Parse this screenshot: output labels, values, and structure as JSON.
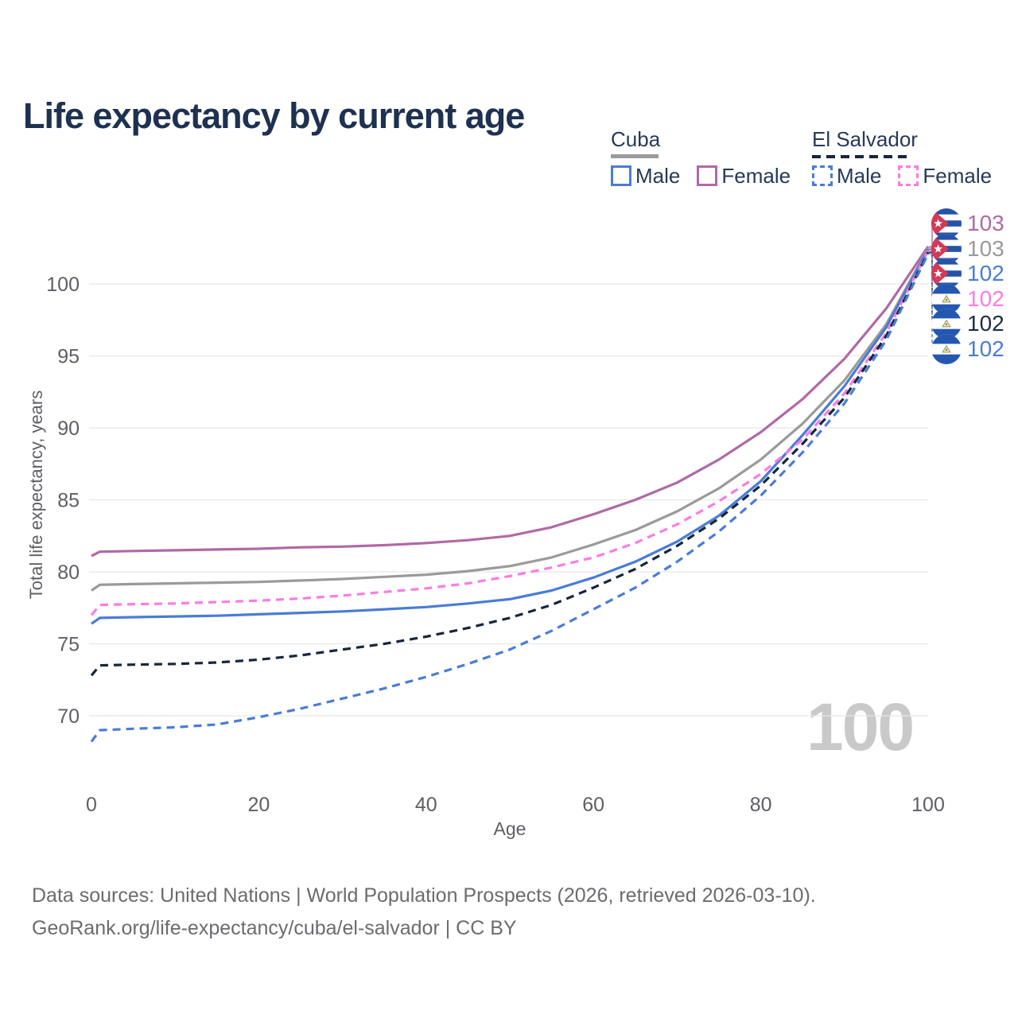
{
  "title": "Life expectancy by current age",
  "watermark": "100",
  "colors": {
    "grid": "#e8e8e8",
    "tick_text": "#5e5e66",
    "title_text": "#1e3150",
    "legend_text": "#253a57",
    "footer_text": "#6b6b70",
    "watermark_text": "#c9c9c9",
    "male_blue": "#4a7cd6",
    "cuba_female_purple": "#b069a6",
    "cuba_total_gray": "#9a9a9a",
    "es_female_pink": "#fa7ce4",
    "es_total_navy": "#16263c"
  },
  "legend": {
    "groups": [
      {
        "label": "Cuba",
        "line_style": "solid",
        "line_color": "#9a9a9a",
        "items": [
          {
            "label": "Male",
            "color": "#4a7cd6",
            "dashed": false
          },
          {
            "label": "Female",
            "color": "#b069a6",
            "dashed": false
          }
        ]
      },
      {
        "label": "El Salvador",
        "line_style": "dashed",
        "line_color": "#16263c",
        "items": [
          {
            "label": "Male",
            "color": "#4a7cd6",
            "dashed": true
          },
          {
            "label": "Female",
            "color": "#fa7ce4",
            "dashed": true
          }
        ]
      }
    ]
  },
  "chart_data": {
    "type": "line",
    "title": "Life expectancy by current age",
    "xlabel": "Age",
    "ylabel": "Total life expectancy, years",
    "xlim": [
      0,
      100
    ],
    "ylim": [
      66.5,
      103.5
    ],
    "x_ticks": [
      0,
      20,
      40,
      60,
      80,
      100
    ],
    "y_ticks": [
      70,
      75,
      80,
      85,
      90,
      95,
      100
    ],
    "grid": "horizontal",
    "legend_position": "top-right",
    "x": [
      0,
      1,
      5,
      10,
      15,
      20,
      25,
      30,
      35,
      40,
      45,
      50,
      55,
      60,
      65,
      70,
      75,
      80,
      85,
      90,
      95,
      100
    ],
    "series": [
      {
        "id": "cuba-female",
        "name": "Cuba Female",
        "country": "Cuba",
        "sex": "Female",
        "style": "solid",
        "color": "#b069a6",
        "values": [
          81.1,
          81.4,
          81.45,
          81.5,
          81.55,
          81.6,
          81.7,
          81.75,
          81.85,
          82.0,
          82.2,
          82.5,
          83.1,
          84.0,
          85.0,
          86.2,
          87.8,
          89.7,
          92.0,
          94.8,
          98.3,
          102.6
        ]
      },
      {
        "id": "cuba-total",
        "name": "Cuba",
        "country": "Cuba",
        "sex": "Both",
        "style": "solid",
        "color": "#9a9a9a",
        "values": [
          78.7,
          79.1,
          79.15,
          79.2,
          79.25,
          79.3,
          79.4,
          79.5,
          79.65,
          79.8,
          80.05,
          80.4,
          81.0,
          81.9,
          82.9,
          84.2,
          85.8,
          87.8,
          90.3,
          93.3,
          97.2,
          102.5
        ]
      },
      {
        "id": "cuba-male",
        "name": "Cuba Male",
        "country": "Cuba",
        "sex": "Male",
        "style": "solid",
        "color": "#4a7cd6",
        "values": [
          76.4,
          76.8,
          76.85,
          76.9,
          76.95,
          77.05,
          77.15,
          77.25,
          77.4,
          77.55,
          77.8,
          78.1,
          78.7,
          79.6,
          80.7,
          82.1,
          83.9,
          86.3,
          89.5,
          92.9,
          97.0,
          102.4
        ]
      },
      {
        "id": "es-female",
        "name": "El Salvador Female",
        "country": "El Salvador",
        "sex": "Female",
        "style": "dashed",
        "color": "#fa7ce4",
        "values": [
          77.0,
          77.7,
          77.75,
          77.8,
          77.9,
          78.0,
          78.15,
          78.35,
          78.6,
          78.85,
          79.2,
          79.7,
          80.3,
          81.0,
          82.0,
          83.3,
          84.9,
          86.8,
          89.2,
          92.4,
          96.6,
          102.3
        ]
      },
      {
        "id": "es-total",
        "name": "El Salvador",
        "country": "El Salvador",
        "sex": "Both",
        "style": "dashed",
        "color": "#16263c",
        "values": [
          72.8,
          73.5,
          73.55,
          73.6,
          73.7,
          73.9,
          74.2,
          74.6,
          75.0,
          75.5,
          76.1,
          76.8,
          77.7,
          78.9,
          80.2,
          81.8,
          83.7,
          86.0,
          88.9,
          92.1,
          96.4,
          102.2
        ]
      },
      {
        "id": "es-male",
        "name": "El Salvador Male",
        "country": "El Salvador",
        "sex": "Male",
        "style": "dashed",
        "color": "#4a7cd6",
        "values": [
          68.2,
          69.0,
          69.1,
          69.2,
          69.4,
          69.9,
          70.5,
          71.2,
          71.9,
          72.7,
          73.6,
          74.6,
          75.9,
          77.4,
          78.9,
          80.7,
          82.8,
          85.3,
          88.3,
          91.7,
          96.1,
          102.1
        ]
      }
    ]
  },
  "end_labels": [
    {
      "flag": "cuba",
      "value": "103",
      "color": "#b069a6"
    },
    {
      "flag": "cuba",
      "value": "103",
      "color": "#9a9a9a"
    },
    {
      "flag": "cuba",
      "value": "102",
      "color": "#4a7cd6"
    },
    {
      "flag": "el-salvador",
      "value": "102",
      "color": "#fa7ce4"
    },
    {
      "flag": "el-salvador",
      "value": "102",
      "color": "#1c2e4a"
    },
    {
      "flag": "el-salvador",
      "value": "102",
      "color": "#4a7cd6"
    }
  ],
  "footer": {
    "line1": "Data sources: United Nations | World Population Prospects (2026, retrieved 2026-03-10).",
    "line2": "GeoRank.org/life-expectancy/cuba/el-salvador | CC BY"
  }
}
